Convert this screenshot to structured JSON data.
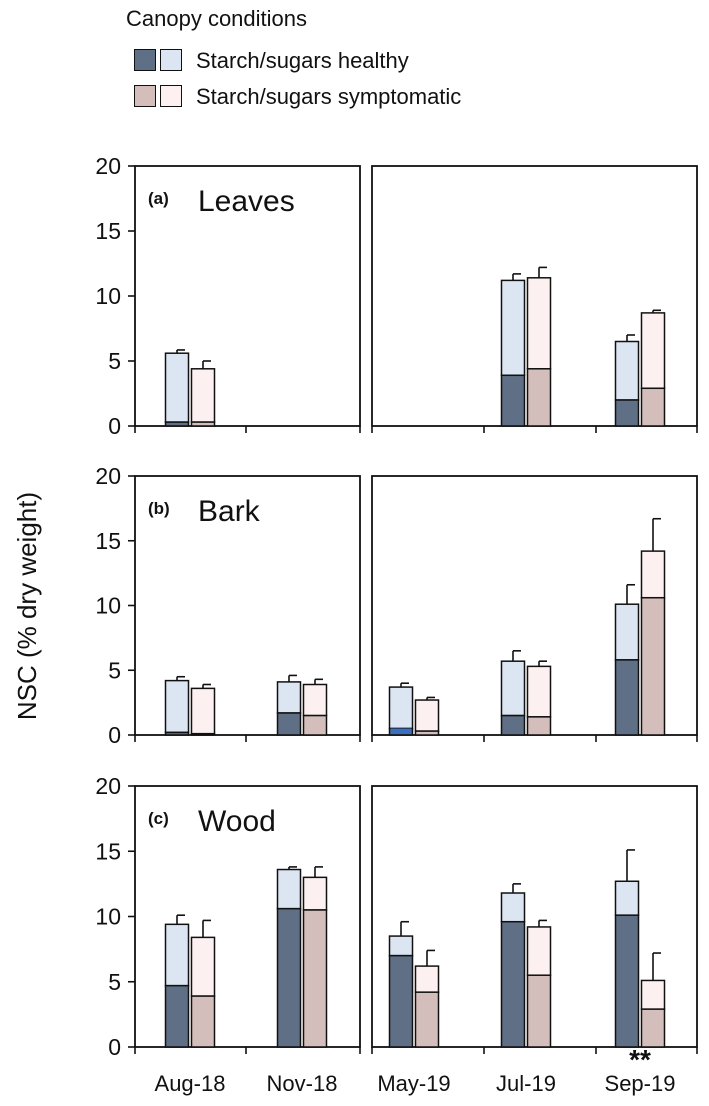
{
  "legend": {
    "title": "Canopy conditions",
    "healthy_label": "Starch/sugars healthy",
    "symptomatic_label": "Starch/sugars symptomatic"
  },
  "colors": {
    "healthy_starch": "#5f6f85",
    "healthy_sugars": "#dce6f3",
    "symptomatic_starch": "#d4bebb",
    "symptomatic_sugars": "#fcf0f1",
    "blue_accent": "#3a6fc0",
    "outline": "#111111"
  },
  "chart_data": {
    "type": "bar",
    "subtype": "stacked-grouped",
    "ylabel": "NSC (% dry weight)",
    "xlabel": "",
    "ylim": [
      0,
      20
    ],
    "yticks": [
      0,
      5,
      10,
      15,
      20
    ],
    "categories": [
      "Aug-18",
      "Nov-18",
      "May-19",
      "Jul-19",
      "Sep-19"
    ],
    "category_groups": [
      [
        "Aug-18",
        "Nov-18"
      ],
      [
        "May-19",
        "Jul-19",
        "Sep-19"
      ]
    ],
    "series_stack": [
      "starch",
      "sugars"
    ],
    "annotation": {
      "text": "**",
      "category": "Sep-19"
    },
    "panels": [
      {
        "letter": "(a)",
        "name": "Leaves",
        "healthy": {
          "starch": [
            0.3,
            null,
            null,
            3.9,
            2.0
          ],
          "total": [
            5.6,
            null,
            null,
            11.2,
            6.5
          ],
          "error": [
            0.25,
            null,
            null,
            0.5,
            0.5
          ]
        },
        "symptomatic": {
          "starch": [
            0.3,
            null,
            null,
            4.4,
            2.9
          ],
          "total": [
            4.4,
            null,
            null,
            11.4,
            8.7
          ],
          "error": [
            0.6,
            null,
            null,
            0.8,
            0.2
          ]
        }
      },
      {
        "letter": "(b)",
        "name": "Bark",
        "healthy": {
          "starch": [
            0.2,
            1.7,
            0.5,
            1.5,
            5.8
          ],
          "total": [
            4.2,
            4.1,
            3.7,
            5.7,
            10.1
          ],
          "error": [
            0.3,
            0.5,
            0.3,
            0.8,
            1.5
          ]
        },
        "symptomatic": {
          "starch": [
            0.1,
            1.5,
            0.3,
            1.4,
            10.6
          ],
          "total": [
            3.6,
            3.9,
            2.7,
            5.3,
            14.2
          ],
          "error": [
            0.3,
            0.4,
            0.2,
            0.4,
            2.5
          ]
        }
      },
      {
        "letter": "(c)",
        "name": "Wood",
        "healthy": {
          "starch": [
            4.7,
            10.6,
            7.0,
            9.6,
            10.1
          ],
          "total": [
            9.4,
            13.6,
            8.5,
            11.8,
            12.7
          ],
          "error": [
            0.7,
            0.2,
            1.1,
            0.7,
            2.4
          ]
        },
        "symptomatic": {
          "starch": [
            3.9,
            10.5,
            4.2,
            5.5,
            2.9
          ],
          "total": [
            8.4,
            13.0,
            6.2,
            9.2,
            5.1
          ],
          "error": [
            1.3,
            0.8,
            1.2,
            0.5,
            2.1
          ]
        }
      }
    ]
  }
}
